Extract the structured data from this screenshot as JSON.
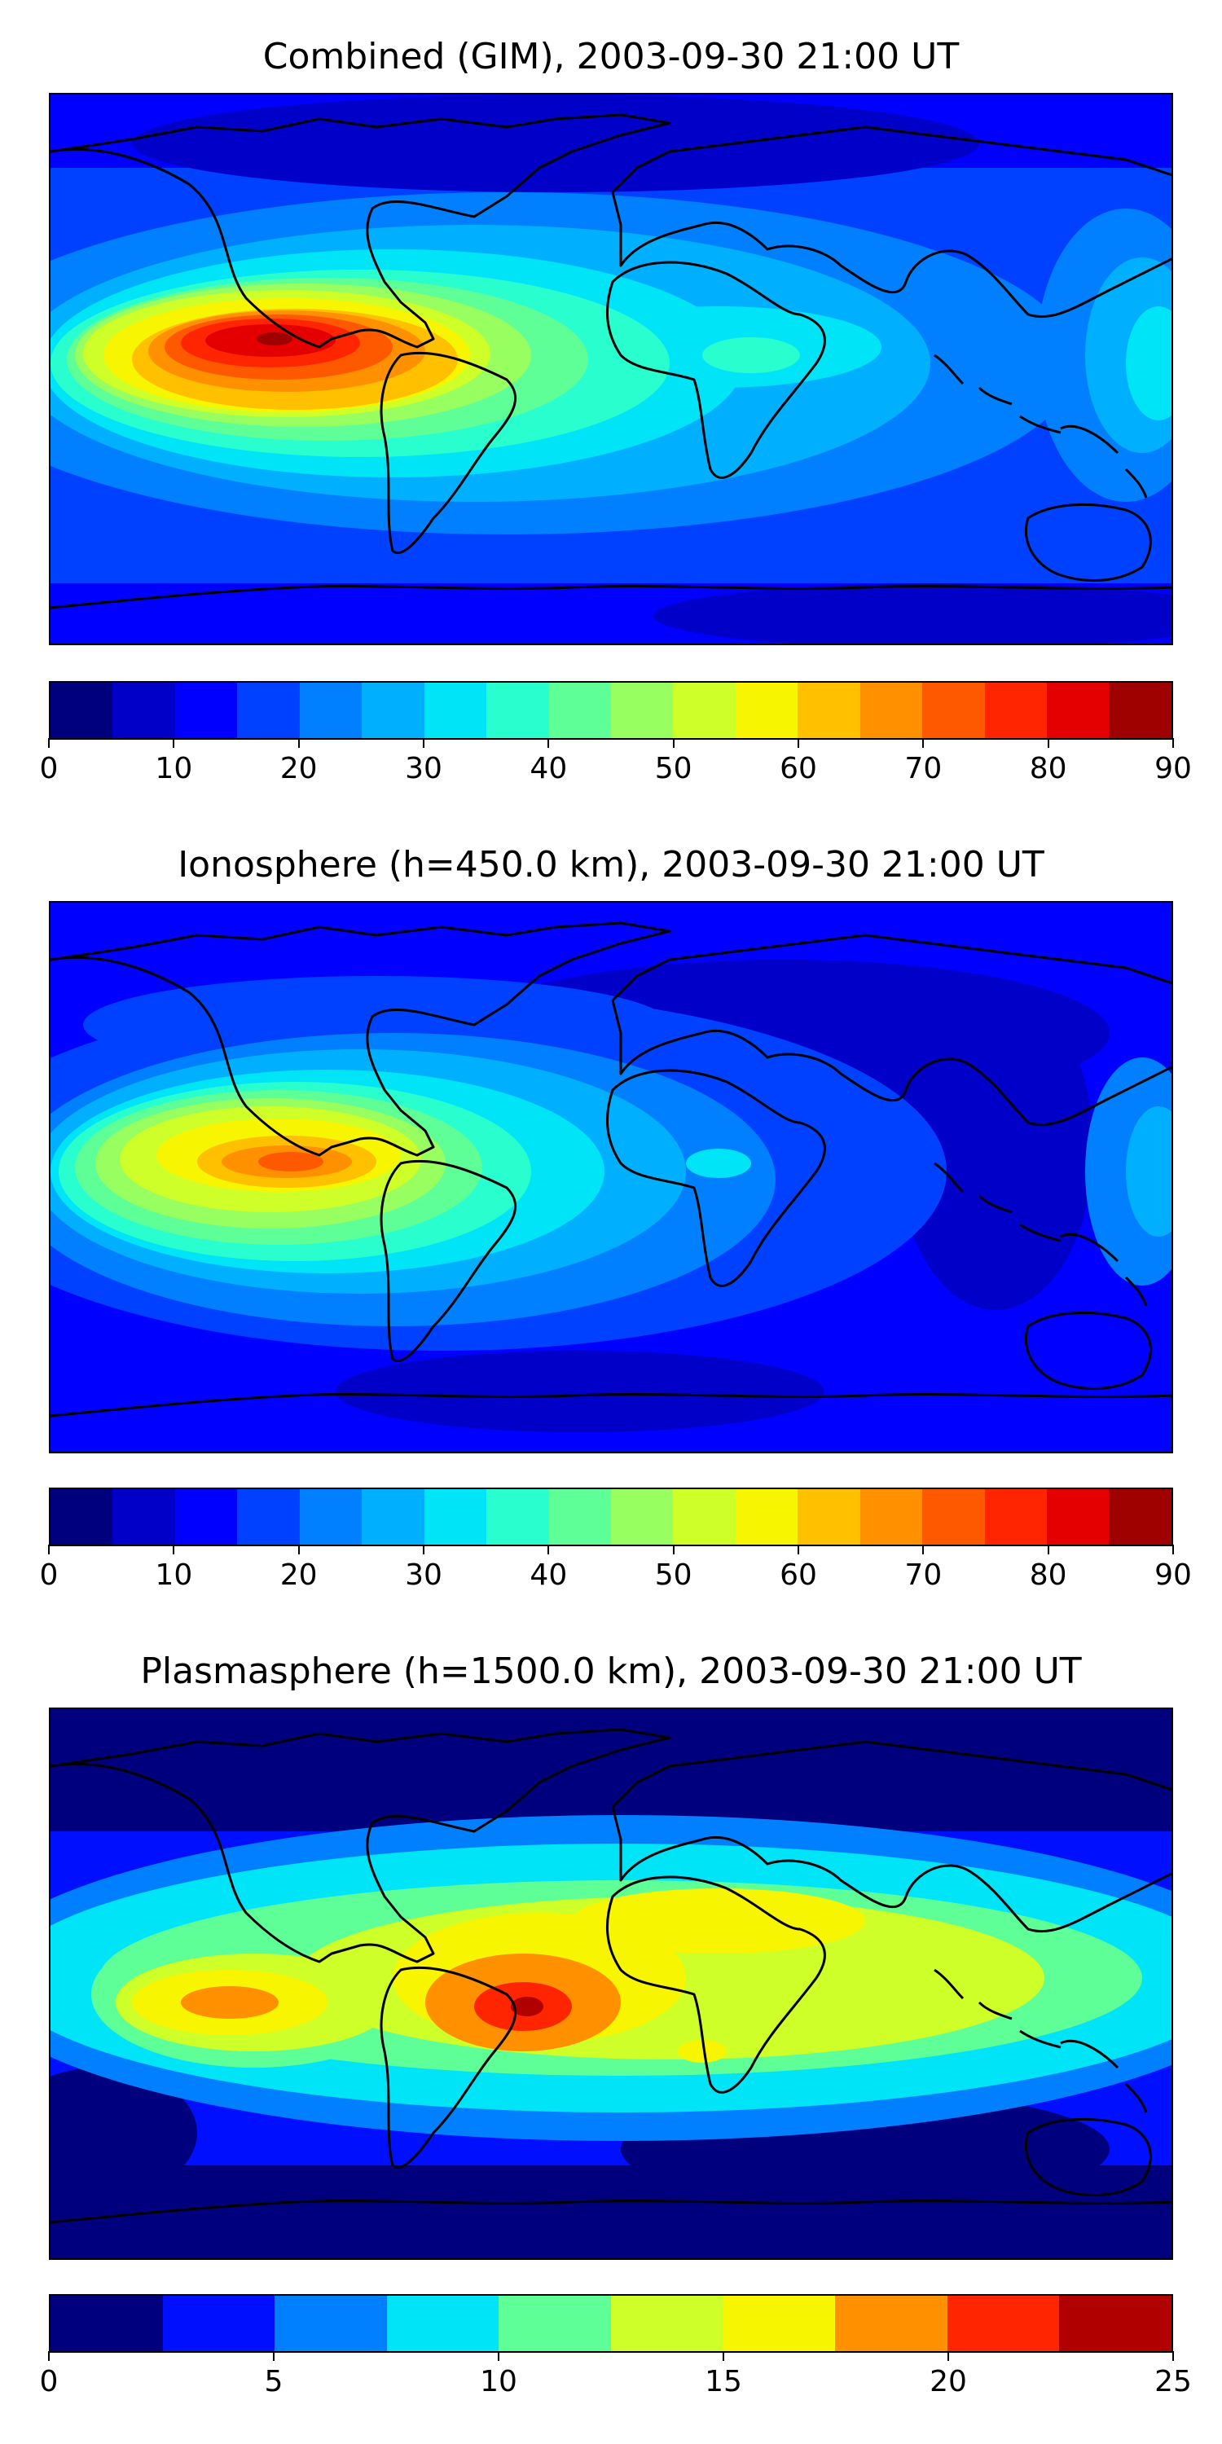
{
  "panels": [
    {
      "title": "Combined (GIM), 2003-09-30 21:00 UT",
      "colorbar": {
        "colors": [
          "#00007f",
          "#0000c8",
          "#0000ff",
          "#0040ff",
          "#0080ff",
          "#00b0ff",
          "#00e4f8",
          "#29ffce",
          "#5fff97",
          "#97ff5f",
          "#ceff29",
          "#f8f500",
          "#ffc000",
          "#ff9100",
          "#ff5900",
          "#ff2500",
          "#e40000",
          "#9f0000"
        ],
        "tick_labels": [
          "0",
          "10",
          "20",
          "30",
          "40",
          "50",
          "60",
          "70",
          "80",
          "90"
        ]
      },
      "field": {
        "background": "#0040ff",
        "anomaly": "pacific-peak-90"
      }
    },
    {
      "title": "Ionosphere  (h=450.0 km), 2003-09-30 21:00 UT",
      "colorbar": {
        "colors": [
          "#00007f",
          "#0000c8",
          "#0000ff",
          "#0040ff",
          "#0080ff",
          "#00b0ff",
          "#00e4f8",
          "#29ffce",
          "#5fff97",
          "#97ff5f",
          "#ceff29",
          "#f8f500",
          "#ffc000",
          "#ff9100",
          "#ff5900",
          "#ff2500",
          "#e40000",
          "#9f0000"
        ],
        "tick_labels": [
          "0",
          "10",
          "20",
          "30",
          "40",
          "50",
          "60",
          "70",
          "80",
          "90"
        ]
      },
      "field": {
        "background": "#0000ff",
        "anomaly": "pacific-peak-70"
      }
    },
    {
      "title": "Plasmasphere (h=1500.0 km), 2003-09-30 21:00 UT",
      "colorbar": {
        "colors": [
          "#00007f",
          "#0010ff",
          "#0080ff",
          "#00e4f8",
          "#5fff97",
          "#ceff29",
          "#f8f500",
          "#ff9100",
          "#ff2500",
          "#b00000"
        ],
        "tick_labels": [
          "0",
          "5",
          "10",
          "15",
          "20",
          "25"
        ]
      },
      "field": {
        "background": "#0010ff",
        "anomaly": "atlantic-peak-22"
      }
    }
  ]
}
